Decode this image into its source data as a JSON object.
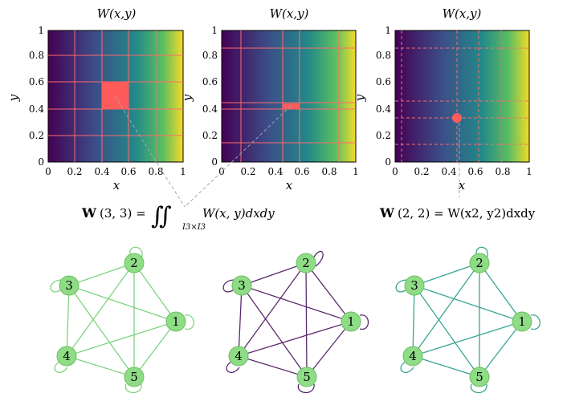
{
  "panels": [
    {
      "title": "W(x,y)",
      "xlabel": "x",
      "ylabel": "y",
      "ticks": [
        "0",
        "0.2",
        "0.4",
        "0.6",
        "0.8",
        "1"
      ],
      "grid_style": "solid"
    },
    {
      "title": "W(x,y)",
      "xlabel": "x",
      "ylabel": "y",
      "ticks": [
        "0",
        "0.2",
        "0.4",
        "0.6",
        "0.8",
        "1"
      ],
      "grid_style": "solid"
    },
    {
      "title": "W(x,y)",
      "xlabel": "x",
      "ylabel": "y",
      "ticks": [
        "0",
        "0.2",
        "0.4",
        "0.6",
        "0.8",
        "1"
      ],
      "grid_style": "dashed"
    }
  ],
  "equations": {
    "left": {
      "lhs_bold": "W",
      "lhs": "(3, 3) =",
      "integral": "∬",
      "subscript": "I3×I3",
      "rhs": "W(x, y)dxdy"
    },
    "right": {
      "lhs_bold": "W",
      "lhs": "(2, 2) = W(x2, y2)dxdy"
    }
  },
  "graphs": [
    {
      "edge_color": "#7fd37f",
      "nodes": [
        "1",
        "2",
        "3",
        "4",
        "5"
      ]
    },
    {
      "edge_color": "#5b2a6e",
      "nodes": [
        "1",
        "2",
        "3",
        "4",
        "5"
      ]
    },
    {
      "edge_color": "#3aa596",
      "nodes": [
        "1",
        "2",
        "3",
        "4",
        "5"
      ]
    }
  ],
  "colors": {
    "highlight": "#ff5b5b",
    "node_fill": "#8fdc86",
    "node_stroke": "#6cbf63"
  }
}
